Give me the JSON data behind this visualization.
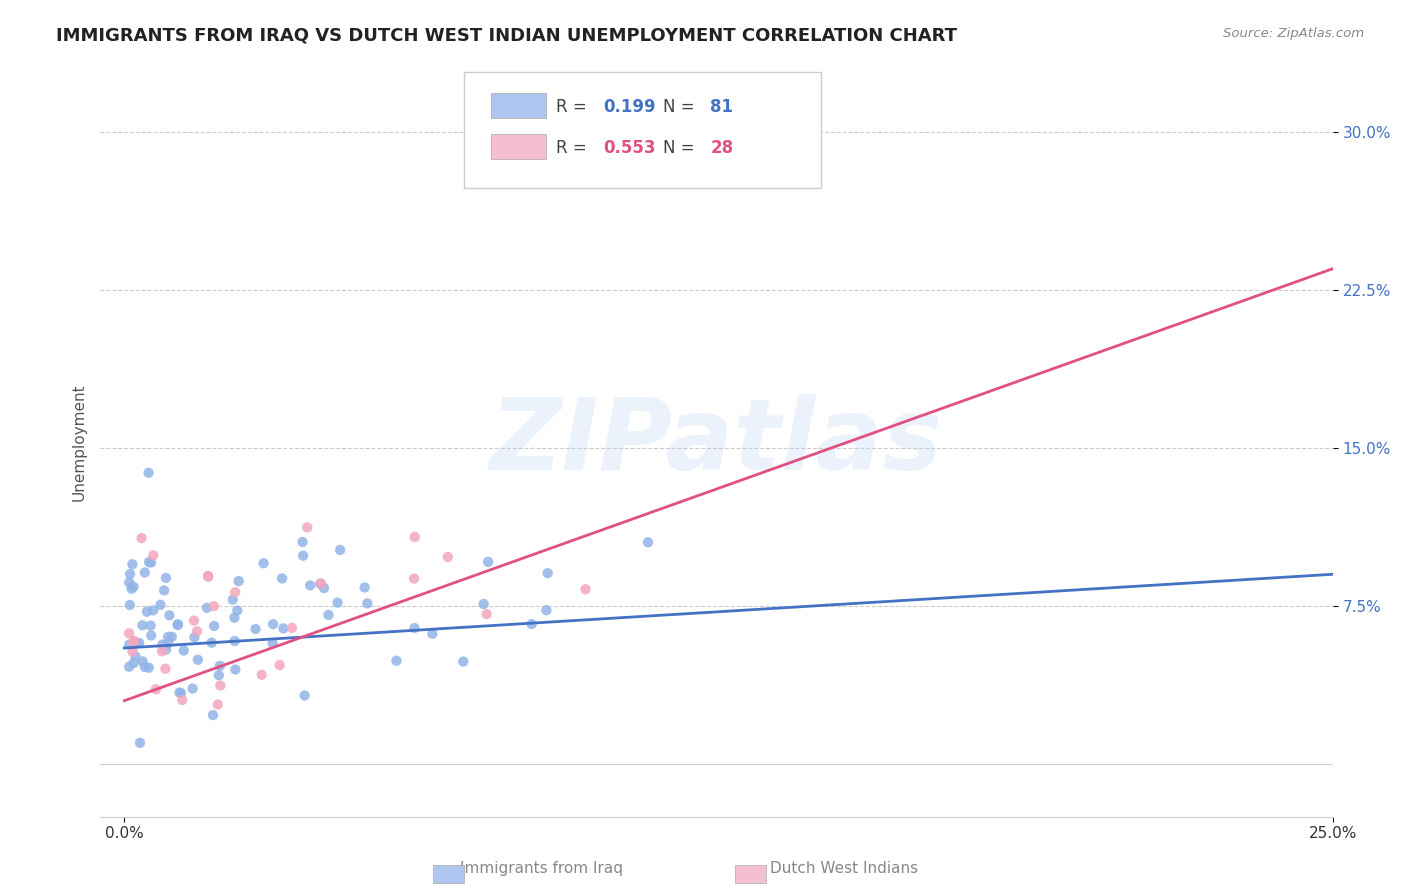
{
  "title": "IMMIGRANTS FROM IRAQ VS DUTCH WEST INDIAN UNEMPLOYMENT CORRELATION CHART",
  "source": "Source: ZipAtlas.com",
  "xlabel": "",
  "ylabel": "Unemployment",
  "xlim": [
    0.0,
    0.25
  ],
  "ylim": [
    -0.025,
    0.33
  ],
  "title_fontsize": 13,
  "axis_label_fontsize": 11,
  "tick_fontsize": 11,
  "background_color": "#ffffff",
  "watermark_text": "ZIPatlas",
  "series": [
    {
      "name": "Immigrants from Iraq",
      "R": 0.199,
      "N": 81,
      "color_scatter": "#92b4e8",
      "color_line": "#4472c4",
      "color_legend": "#aec6f0",
      "seed": 42,
      "line_x": [
        0.0,
        0.25
      ],
      "line_y": [
        0.055,
        0.09
      ]
    },
    {
      "name": "Dutch West Indians",
      "R": 0.553,
      "N": 28,
      "color_scatter": "#f4a7bb",
      "color_line": "#e05080",
      "color_legend": "#f4bfce",
      "seed": 7,
      "line_x": [
        0.0,
        0.25
      ],
      "line_y": [
        0.03,
        0.235
      ]
    }
  ],
  "yticks": [
    0.075,
    0.15,
    0.225,
    0.3
  ],
  "yticklabels": [
    "7.5%",
    "15.0%",
    "22.5%",
    "30.0%"
  ],
  "xticks": [
    0.0,
    0.25
  ],
  "xticklabels": [
    "0.0%",
    "25.0%"
  ]
}
